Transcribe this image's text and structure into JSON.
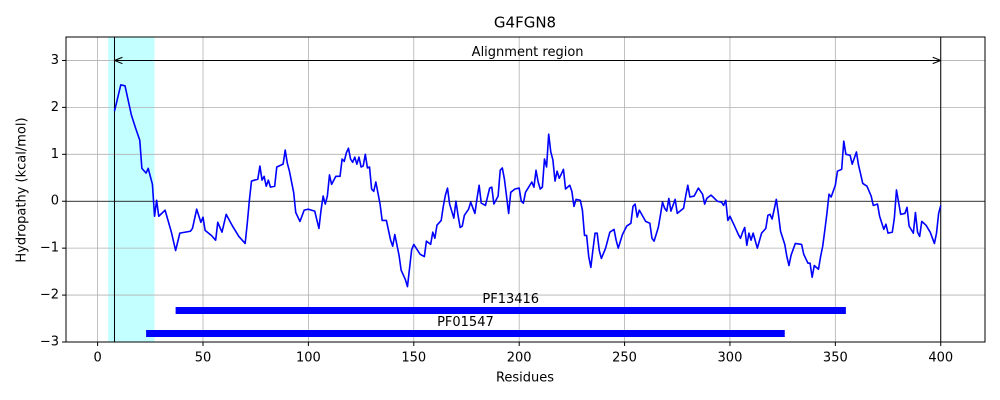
{
  "chart_data": {
    "type": "line",
    "title": "G4FGN8",
    "xlabel": "Residues",
    "ylabel": "Hydropathy (kcal/mol)",
    "color": "#0000ff",
    "x": [
      8,
      11,
      13,
      16,
      18,
      20,
      21,
      23,
      24,
      26,
      27,
      28,
      29,
      32,
      35,
      37,
      39,
      44,
      45,
      47,
      49,
      50,
      51,
      54,
      56,
      57,
      59,
      61,
      64,
      67,
      70,
      71,
      72,
      73,
      76,
      77,
      78,
      79,
      80,
      81,
      82,
      84,
      85,
      88,
      89,
      90,
      91,
      93,
      94,
      96,
      98,
      100,
      103,
      105,
      106,
      107,
      108,
      109,
      110,
      111,
      113,
      115,
      116,
      117,
      118,
      119,
      120,
      121,
      122,
      123,
      124,
      125,
      126,
      127,
      128,
      129,
      130,
      131,
      132,
      134,
      135,
      137,
      139,
      140,
      141,
      143,
      144,
      146,
      147,
      149,
      150,
      153,
      155,
      156,
      158,
      159,
      160,
      161,
      163,
      164,
      165,
      166,
      167,
      169,
      170,
      171,
      172,
      173,
      174,
      176,
      177,
      179,
      180,
      181,
      182,
      184,
      186,
      187,
      188,
      190,
      191,
      192,
      193,
      194,
      195,
      196,
      198,
      200,
      201,
      202,
      203,
      206,
      207,
      208,
      209,
      210,
      211,
      212,
      213,
      214,
      215,
      216,
      217,
      218,
      219,
      220,
      221,
      222,
      224,
      225,
      226,
      227,
      229,
      230,
      231,
      232,
      233,
      234,
      235,
      236,
      237,
      238,
      239,
      241,
      243,
      245,
      246,
      247,
      249,
      251,
      253,
      254,
      255,
      256,
      257,
      260,
      262,
      263,
      264,
      266,
      267,
      268,
      269,
      270,
      271,
      272,
      274,
      275,
      278,
      279,
      280,
      281,
      283,
      285,
      287,
      288,
      289,
      291,
      292,
      294,
      296,
      297,
      298,
      299,
      300,
      302,
      304,
      305,
      306,
      307,
      308,
      309,
      310,
      311,
      313,
      315,
      317,
      318,
      319,
      320,
      322,
      323,
      324,
      326,
      327,
      328,
      329,
      331,
      334,
      335,
      337,
      338,
      339,
      340,
      342,
      343,
      344,
      345,
      346,
      347,
      348,
      350,
      351,
      353,
      354,
      355,
      357,
      358,
      360,
      361,
      362,
      363,
      365,
      367,
      368,
      370,
      371,
      373,
      374,
      375,
      377,
      378,
      379,
      381,
      383,
      384,
      385,
      387,
      388,
      389,
      390,
      391,
      393,
      395,
      397,
      398,
      399,
      400
    ],
    "values": [
      1.92,
      2.48,
      2.46,
      1.84,
      1.56,
      1.3,
      0.7,
      0.6,
      0.7,
      0.36,
      -0.32,
      0.02,
      -0.32,
      -0.19,
      -0.66,
      -1.05,
      -0.68,
      -0.64,
      -0.58,
      -0.17,
      -0.45,
      -0.34,
      -0.62,
      -0.73,
      -0.83,
      -0.45,
      -0.66,
      -0.28,
      -0.53,
      -0.75,
      -0.9,
      -0.47,
      0.02,
      0.43,
      0.47,
      0.75,
      0.45,
      0.53,
      0.32,
      0.45,
      0.3,
      0.32,
      0.73,
      0.79,
      1.09,
      0.81,
      0.64,
      0.19,
      -0.24,
      -0.43,
      -0.19,
      -0.17,
      -0.21,
      -0.58,
      -0.19,
      0.11,
      -0.06,
      0.11,
      0.56,
      0.36,
      0.53,
      0.53,
      0.9,
      0.85,
      1.03,
      1.13,
      0.9,
      0.83,
      0.94,
      0.79,
      0.94,
      0.73,
      0.75,
      1.0,
      0.71,
      0.73,
      0.26,
      0.21,
      0.41,
      -0.06,
      -0.41,
      -0.41,
      -0.83,
      -0.96,
      -0.71,
      -1.15,
      -1.47,
      -1.67,
      -1.82,
      -1.03,
      -0.92,
      -1.13,
      -1.18,
      -0.85,
      -0.92,
      -0.66,
      -0.79,
      -0.51,
      -0.41,
      -0.11,
      0.13,
      0.28,
      -0.06,
      -0.36,
      0.0,
      -0.3,
      -0.56,
      -0.53,
      -0.3,
      -0.17,
      -0.02,
      -0.26,
      0.06,
      0.34,
      -0.04,
      -0.09,
      0.28,
      0.3,
      -0.06,
      0.11,
      0.66,
      0.71,
      0.47,
      0.11,
      -0.26,
      0.19,
      0.26,
      0.28,
      0.0,
      -0.04,
      0.19,
      0.41,
      0.3,
      0.66,
      0.41,
      0.26,
      0.3,
      0.9,
      0.73,
      1.43,
      1.05,
      0.88,
      0.43,
      0.64,
      0.49,
      0.58,
      0.68,
      0.26,
      0.34,
      0.21,
      -0.11,
      0.04,
      0.02,
      -0.19,
      -0.73,
      -0.73,
      -1.18,
      -1.41,
      -1.03,
      -0.68,
      -0.68,
      -1.05,
      -1.22,
      -1.0,
      -0.66,
      -0.6,
      -0.83,
      -1.0,
      -0.71,
      -0.53,
      -0.47,
      -0.11,
      -0.06,
      -0.34,
      -0.19,
      -0.43,
      -0.47,
      -0.79,
      -0.85,
      -0.56,
      -0.3,
      -0.02,
      -0.15,
      -0.21,
      0.06,
      -0.21,
      0.04,
      -0.26,
      -0.15,
      0.11,
      0.34,
      0.09,
      0.11,
      0.28,
      0.15,
      -0.06,
      0.06,
      0.13,
      0.09,
      0.0,
      -0.02,
      -0.09,
      0.02,
      -0.41,
      -0.32,
      -0.51,
      -0.71,
      -0.79,
      -0.66,
      -0.56,
      -0.94,
      -0.68,
      -0.83,
      -0.68,
      -1.0,
      -0.68,
      -0.58,
      -0.3,
      -0.28,
      -0.38,
      0.04,
      -0.28,
      -0.64,
      -0.92,
      -1.18,
      -1.37,
      -1.15,
      -0.9,
      -0.92,
      -1.13,
      -1.32,
      -1.32,
      -1.62,
      -1.37,
      -1.45,
      -1.18,
      -0.96,
      -0.62,
      -0.26,
      0.15,
      0.09,
      0.34,
      0.64,
      0.68,
      1.28,
      1.0,
      0.98,
      0.79,
      1.05,
      0.77,
      0.58,
      0.38,
      0.32,
      0.11,
      -0.09,
      -0.06,
      -0.32,
      -0.6,
      -0.49,
      -0.68,
      -0.66,
      -0.36,
      0.24,
      -0.28,
      -0.26,
      -0.13,
      -0.53,
      -0.68,
      -0.24,
      -0.66,
      -0.75,
      -0.43,
      -0.51,
      -0.66,
      -0.9,
      -0.68,
      -0.26,
      -0.09
    ],
    "xlim": [
      -15,
      421
    ],
    "ylim": [
      -3,
      3.5
    ],
    "xticks": [
      0,
      50,
      100,
      150,
      200,
      250,
      300,
      350,
      400
    ],
    "yticks": [
      {
        "value": -3,
        "label": "−3"
      },
      {
        "value": -2,
        "label": "−2"
      },
      {
        "value": -1,
        "label": "−1"
      },
      0,
      1,
      2,
      3
    ],
    "grid": true,
    "hline": 0,
    "highlight_span": {
      "start": 5,
      "end": 27,
      "color": "#c4ffff"
    },
    "region": {
      "label": "Alignment region",
      "start": 8,
      "end": 400,
      "y": 3
    },
    "domains": [
      {
        "name": "PF13416",
        "start": 37,
        "end": 355,
        "y": -2.33,
        "color": "#0000ff"
      },
      {
        "name": "PF01547",
        "start": 23,
        "end": 326,
        "y": -2.82,
        "color": "#0000ff"
      }
    ]
  }
}
